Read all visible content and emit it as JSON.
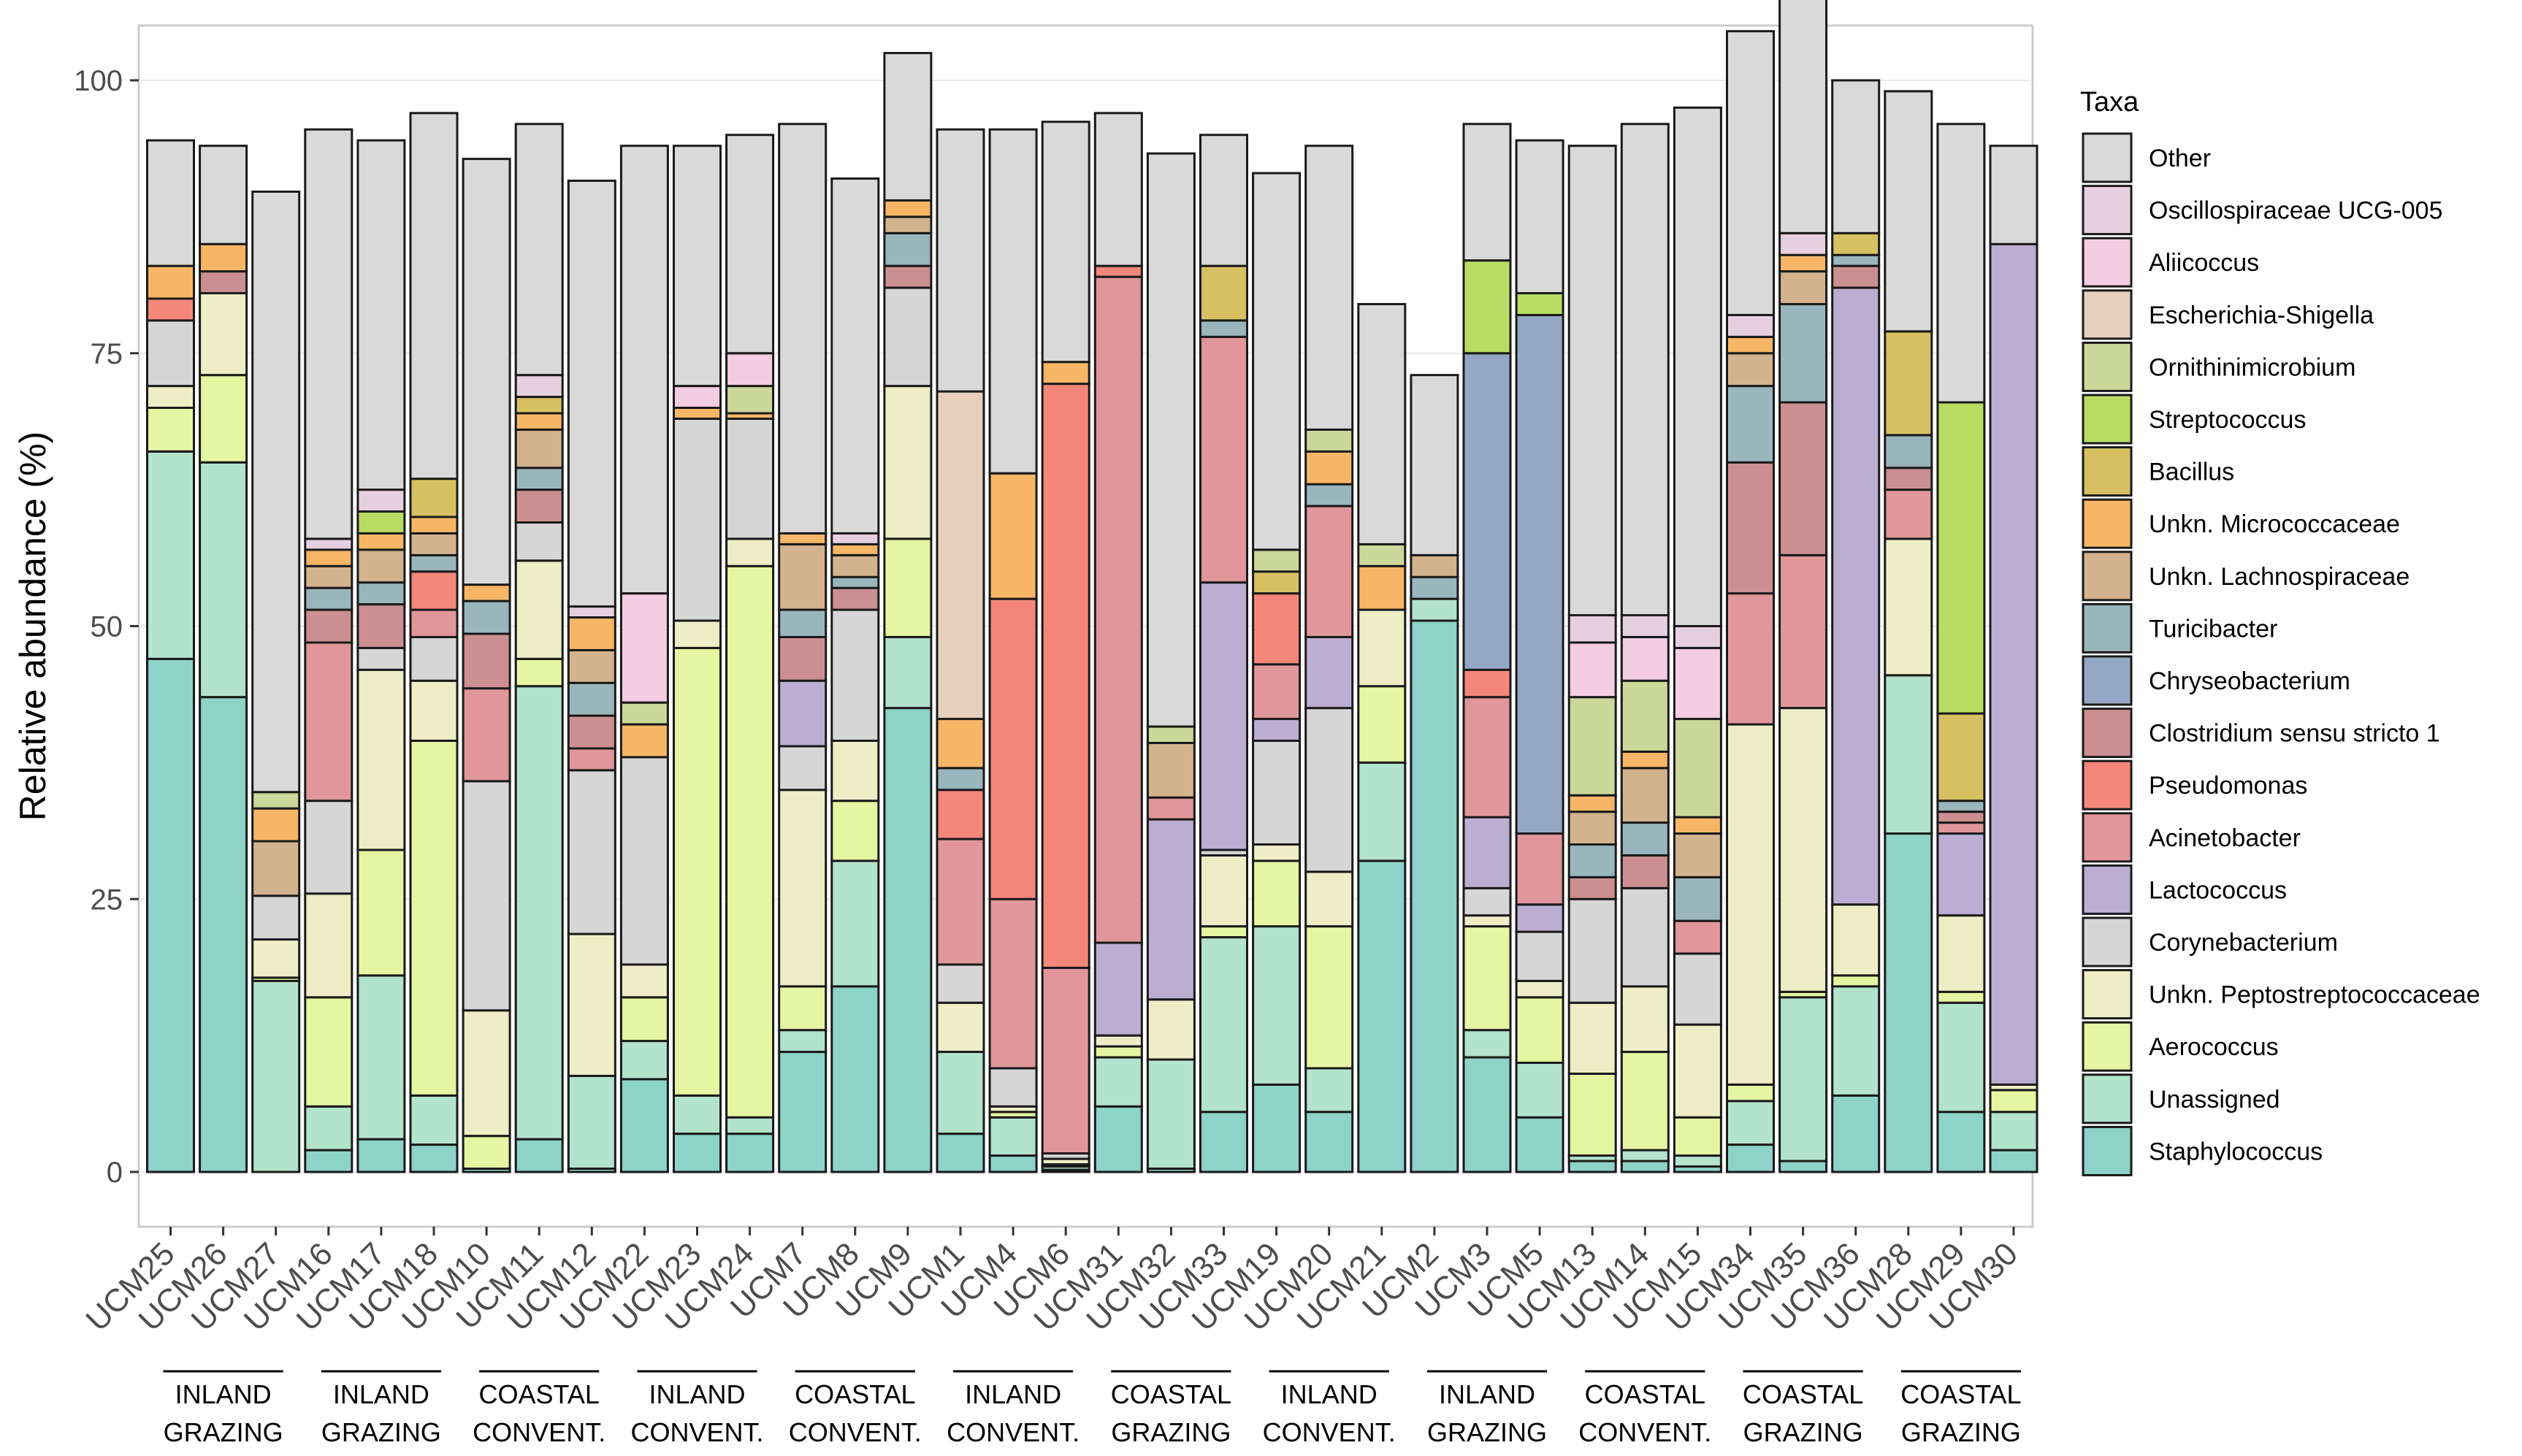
{
  "chart_data": {
    "type": "bar",
    "stacked": true,
    "ylabel": "Relative abundance (%)",
    "xlabel": "",
    "ylim": [
      0,
      100
    ],
    "yticks": [
      0,
      25,
      50,
      75,
      100
    ],
    "legend_title": "Taxa",
    "legend_position": "right",
    "categories": [
      "UCM25",
      "UCM26",
      "UCM27",
      "UCM16",
      "UCM17",
      "UCM18",
      "UCM10",
      "UCM11",
      "UCM12",
      "UCM22",
      "UCM23",
      "UCM24",
      "UCM7",
      "UCM8",
      "UCM9",
      "UCM1",
      "UCM4",
      "UCM6",
      "UCM31",
      "UCM32",
      "UCM33",
      "UCM19",
      "UCM20",
      "UCM21",
      "UCM2",
      "UCM3",
      "UCM5",
      "UCM13",
      "UCM14",
      "UCM15",
      "UCM34",
      "UCM35",
      "UCM36",
      "UCM28",
      "UCM29",
      "UCM30"
    ],
    "groups": [
      {
        "line1": "INLAND",
        "line2": "GRAZING",
        "start": 0,
        "end": 2
      },
      {
        "line1": "INLAND",
        "line2": "GRAZING",
        "start": 3,
        "end": 5
      },
      {
        "line1": "COASTAL",
        "line2": "CONVENT.",
        "start": 6,
        "end": 8
      },
      {
        "line1": "INLAND",
        "line2": "CONVENT.",
        "start": 9,
        "end": 11
      },
      {
        "line1": "COASTAL",
        "line2": "CONVENT.",
        "start": 12,
        "end": 14
      },
      {
        "line1": "INLAND",
        "line2": "CONVENT.",
        "start": 15,
        "end": 17
      },
      {
        "line1": "COASTAL",
        "line2": "GRAZING",
        "start": 18,
        "end": 20
      },
      {
        "line1": "INLAND",
        "line2": "CONVENT.",
        "start": 21,
        "end": 23
      },
      {
        "line1": "INLAND",
        "line2": "GRAZING",
        "start": 24,
        "end": 26
      },
      {
        "line1": "COASTAL",
        "line2": "CONVENT.",
        "start": 27,
        "end": 29
      },
      {
        "line1": "COASTAL",
        "line2": "GRAZING",
        "start": 30,
        "end": 32
      },
      {
        "line1": "COASTAL",
        "line2": "GRAZING",
        "start": 33,
        "end": 35
      }
    ],
    "series": [
      {
        "name": "Staphylococcus",
        "color": "#8dd3c7",
        "values": [
          47,
          43.5,
          0,
          2,
          3,
          2.5,
          0.3,
          3,
          0.3,
          8.5,
          3.5,
          3.5,
          11,
          17,
          42.5,
          3.5,
          1.5,
          0.2,
          6,
          0.3,
          5.5,
          8,
          5.5,
          28.5,
          50.5,
          10.5,
          5,
          1,
          1,
          0.5,
          2.5,
          1,
          7,
          31,
          5.5,
          2
        ]
      },
      {
        "name": "Unassigned",
        "color": "#b3e2cd",
        "values": [
          19,
          21.5,
          17.5,
          4,
          15,
          4.5,
          0,
          41.5,
          8.5,
          3.5,
          3.5,
          1.5,
          2,
          11.5,
          6.5,
          7.5,
          3.5,
          0.3,
          4.5,
          10,
          16,
          14.5,
          4,
          9,
          2,
          2.5,
          5,
          0.5,
          1,
          1,
          4,
          15,
          10,
          14.5,
          10,
          3.5
        ]
      },
      {
        "name": "Aerococcus",
        "color": "#e6f5a1",
        "values": [
          4,
          8,
          0.3,
          10,
          11.5,
          32.5,
          3,
          2.5,
          0,
          4,
          41,
          50.5,
          4,
          5.5,
          9,
          0,
          0.5,
          0.2,
          1,
          0,
          1,
          6,
          13,
          7,
          0,
          9.5,
          6,
          7.5,
          9,
          3.5,
          1.5,
          0.5,
          1,
          0,
          1,
          2
        ]
      },
      {
        "name": "Unkn. Peptostreptococcaceae",
        "color": "#edeec6",
        "values": [
          2,
          7.5,
          3.5,
          9.5,
          16.5,
          5.5,
          11.5,
          9,
          13,
          3,
          2.5,
          2.5,
          18,
          5.5,
          14,
          4.5,
          0.5,
          0.5,
          1,
          5.5,
          6.5,
          1.5,
          5,
          7,
          0,
          1,
          1.5,
          6.5,
          6,
          8.5,
          33,
          26,
          6.5,
          12.5,
          7,
          0.5
        ]
      },
      {
        "name": "Corynebacterium",
        "color": "#d6d6d6",
        "values": [
          6,
          0,
          4,
          8.5,
          2,
          4,
          21,
          3.5,
          15,
          19,
          18.5,
          11,
          4,
          12,
          9,
          3.5,
          3.5,
          0.5,
          0,
          0,
          0.5,
          9.5,
          15,
          0,
          0,
          2.5,
          4.5,
          9.5,
          9,
          6.5,
          0,
          0,
          0,
          0,
          0,
          0
        ]
      },
      {
        "name": "Lactococcus",
        "color": "#bcaed3",
        "values": [
          0,
          0,
          0,
          0,
          0,
          0,
          0,
          0,
          0,
          0,
          0,
          0,
          6,
          0,
          0,
          0,
          0,
          0,
          8.5,
          16.5,
          24.5,
          2,
          6.5,
          0,
          0,
          6.5,
          2.5,
          0,
          0,
          0,
          0,
          0,
          56.5,
          0,
          7.5,
          77
        ]
      },
      {
        "name": "Acinetobacter",
        "color": "#e0969a",
        "values": [
          0,
          0,
          0,
          14.5,
          0,
          2.5,
          8.5,
          0,
          2,
          0,
          0,
          0,
          0,
          0,
          0,
          11.5,
          15.5,
          17,
          61,
          2,
          22.5,
          5,
          12,
          0,
          0,
          11,
          6.5,
          0,
          0,
          3,
          12,
          14,
          0,
          4.5,
          1,
          0
        ]
      },
      {
        "name": "Pseudomonas",
        "color": "#f4877a",
        "values": [
          2,
          0,
          0,
          0,
          0,
          3.5,
          0,
          0,
          0,
          0,
          0,
          0,
          0,
          0,
          0,
          4.5,
          27.5,
          53.5,
          1,
          0,
          0,
          6.5,
          0,
          0,
          0,
          2.5,
          0,
          0,
          0,
          0,
          0,
          0,
          0,
          0,
          0,
          0
        ]
      },
      {
        "name": "Clostridium sensu stricto 1",
        "color": "#cc8f91",
        "values": [
          0,
          2,
          0,
          3,
          4,
          0,
          5,
          3,
          3,
          0,
          0,
          0,
          4,
          2,
          2,
          0,
          0,
          0,
          0,
          0,
          0,
          0,
          0,
          0,
          0,
          0,
          0,
          2,
          3,
          0,
          12,
          14,
          2,
          2,
          1,
          0
        ]
      },
      {
        "name": "Chryseobacterium",
        "color": "#94a7c4",
        "values": [
          0,
          0,
          0,
          0,
          0,
          0,
          0,
          0,
          0,
          0,
          0,
          0,
          0,
          0,
          0,
          0,
          0,
          0,
          0,
          0,
          0,
          0,
          0,
          0,
          0,
          29,
          47.5,
          0,
          0,
          0,
          0,
          0,
          0,
          0,
          0,
          0
        ]
      },
      {
        "name": "Turicibacter",
        "color": "#9ab6bd",
        "values": [
          0,
          0,
          0,
          2,
          2,
          1.5,
          3,
          2,
          3,
          0,
          0,
          0,
          2.5,
          1,
          3,
          2,
          0,
          0,
          0,
          0,
          1.5,
          0,
          2,
          0,
          2,
          0,
          0,
          3,
          3,
          4,
          7,
          9,
          1,
          3,
          1,
          0
        ]
      },
      {
        "name": "Unkn. Lachnospiraceae",
        "color": "#d3b28e",
        "values": [
          0,
          0,
          5,
          2,
          3,
          2,
          0,
          3.5,
          3,
          0,
          0,
          0,
          6,
          2,
          1.5,
          0,
          0,
          0,
          0,
          5,
          0,
          0,
          0,
          0,
          2,
          0,
          0,
          3,
          5,
          4,
          3,
          3,
          0,
          0,
          0,
          0
        ]
      },
      {
        "name": "Unkn. Micrococcaceae",
        "color": "#f6b666",
        "values": [
          3,
          2.5,
          3,
          1.5,
          1.5,
          1.5,
          1.5,
          1.5,
          3,
          3,
          1,
          0.5,
          1,
          1,
          1.5,
          4.5,
          11.5,
          2,
          0,
          0,
          0,
          0,
          3,
          4,
          0,
          0,
          0,
          1.5,
          1.5,
          1.5,
          1.5,
          1.5,
          0,
          0,
          0,
          0
        ]
      },
      {
        "name": "Bacillus",
        "color": "#d6c062",
        "values": [
          0,
          0,
          0,
          0,
          0,
          3.5,
          0,
          1.5,
          0,
          0,
          0,
          0,
          0,
          0,
          0,
          0,
          0,
          0,
          0,
          0,
          5,
          2,
          0,
          0,
          0,
          0,
          0,
          0,
          0,
          0,
          0,
          0,
          2,
          9.5,
          8,
          0
        ]
      },
      {
        "name": "Streptococcus",
        "color": "#b8dc63",
        "values": [
          0,
          0,
          0,
          0,
          2,
          0,
          0,
          0,
          0,
          0,
          0,
          0,
          0,
          0,
          0,
          0,
          0,
          0,
          0,
          0,
          0,
          0,
          0,
          0,
          0,
          8.5,
          2,
          0,
          0,
          0,
          0,
          0,
          0,
          0,
          28.5,
          0
        ]
      },
      {
        "name": "Ornithinimicrobium",
        "color": "#cbd89a",
        "values": [
          0,
          0,
          1.5,
          0,
          0,
          0,
          0,
          0,
          0,
          2,
          0,
          2.5,
          0,
          0,
          0,
          0,
          0,
          0,
          0,
          1.5,
          0,
          2,
          2,
          2,
          0,
          0,
          0,
          9,
          6.5,
          9,
          0,
          0,
          0,
          0,
          0,
          0
        ]
      },
      {
        "name": "Escherichia-Shigella",
        "color": "#e6cfbd",
        "values": [
          0,
          0,
          0,
          0,
          0,
          0,
          0,
          0,
          0,
          0,
          0,
          0,
          0,
          0,
          0,
          30,
          0,
          0,
          0,
          0,
          0,
          0,
          0,
          0,
          0,
          0,
          0,
          0,
          0,
          0,
          0,
          0,
          0,
          0,
          0,
          0
        ]
      },
      {
        "name": "Aliicoccus",
        "color": "#f4cde1",
        "values": [
          0,
          0,
          0,
          0,
          0,
          0,
          0,
          0,
          0,
          10,
          2,
          3,
          0,
          0,
          0,
          0,
          0,
          0,
          0,
          0,
          0,
          0,
          0,
          0,
          0,
          0,
          0,
          5,
          4,
          6.5,
          0,
          0,
          0,
          0,
          0,
          0
        ]
      },
      {
        "name": "Oscillospiraceae UCG-005",
        "color": "#e6d0df",
        "values": [
          0,
          0,
          0,
          1,
          2,
          0,
          0,
          2,
          1,
          0,
          0,
          0,
          0,
          1,
          0,
          0,
          0,
          0,
          0,
          0,
          0,
          0,
          0,
          0,
          0,
          0,
          0,
          2.5,
          2,
          2,
          2,
          2,
          0,
          0,
          0,
          0
        ]
      },
      {
        "name": "Other",
        "color": "#d9d9d9",
        "values": [
          11.5,
          9,
          55,
          37.5,
          32,
          33.5,
          39,
          23,
          39,
          41,
          22,
          20,
          37.5,
          32.5,
          13.5,
          24,
          31.5,
          22,
          14,
          52.5,
          12,
          34.5,
          26,
          22,
          16.5,
          12.5,
          14,
          43,
          45,
          47.5,
          26,
          24,
          14,
          22,
          25.5,
          9
        ]
      }
    ]
  }
}
